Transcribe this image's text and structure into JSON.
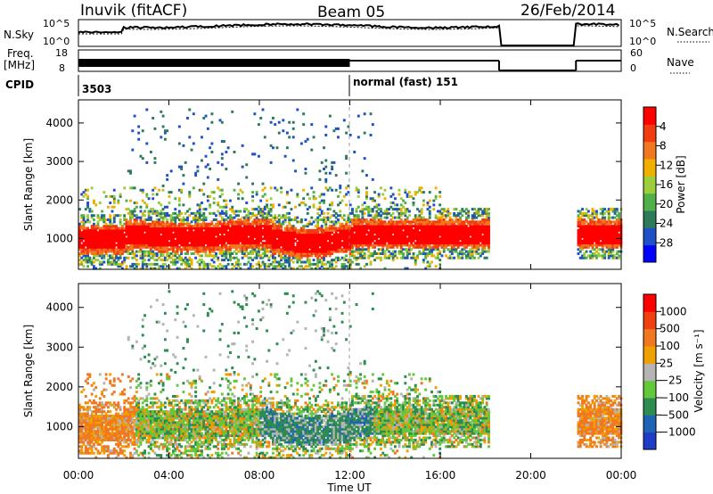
{
  "header": {
    "station": "Inuvik (fitACF)",
    "beam": "Beam 05",
    "date": "26/Feb/2014"
  },
  "summary": {
    "nsky_label": "N.Sky",
    "nsky_ticks": [
      "10^5",
      "10^0"
    ],
    "nsearch_label": "N.Search",
    "nsearch_ticks": [
      "10^5",
      "10^0"
    ],
    "freq_label": "Freq.",
    "freq_unit": "[MHz]",
    "freq_ticks": [
      "18",
      "8"
    ],
    "nave_label": "Nave",
    "nave_ticks": [
      "60",
      "0"
    ],
    "cpid_label": "CPID",
    "cpid_values": [
      {
        "text": "3503",
        "t": 0.0
      },
      {
        "text": "normal (fast) 151",
        "t": 12.0
      }
    ]
  },
  "chart_data": [
    {
      "type": "heatmap",
      "name": "power",
      "ylabel": "Slant Range [km]",
      "xlabel": "Time UT",
      "xlim": [
        0,
        24
      ],
      "ylim": [
        200,
        4600
      ],
      "y_ticks": [
        1000,
        2000,
        3000,
        4000
      ],
      "x_ticks": [
        "00:00",
        "04:00",
        "08:00",
        "12:00",
        "16:00",
        "20:00",
        "00:00"
      ],
      "colorbar": {
        "label": "Power [dB]",
        "ticks": [
          "4",
          "8",
          "12",
          "16",
          "20",
          "24",
          "28"
        ],
        "range": [
          0,
          32
        ],
        "colors": [
          "#0000ff",
          "#1e50c8",
          "#2d7a5a",
          "#52b04a",
          "#9ccd3a",
          "#f0b000",
          "#f07820",
          "#f03c10",
          "#ff0000"
        ]
      }
    },
    {
      "type": "heatmap",
      "name": "velocity",
      "ylabel": "Slant Range [km]",
      "xlabel": "Time UT",
      "xlim": [
        0,
        24
      ],
      "ylim": [
        200,
        4600
      ],
      "y_ticks": [
        1000,
        2000,
        3000,
        4000
      ],
      "x_ticks": [
        "00:00",
        "04:00",
        "08:00",
        "12:00",
        "16:00",
        "20:00",
        "00:00"
      ],
      "colorbar": {
        "label": "Velocity [m s⁻¹]",
        "ticks": [
          "1000",
          "500",
          "100",
          "25",
          "−25",
          "−100",
          "−500",
          "−1000"
        ],
        "colors": [
          "#1e3cc8",
          "#1e64b4",
          "#2d8c50",
          "#64c83c",
          "#b4b4b4",
          "#f0a000",
          "#f07820",
          "#f04010",
          "#ff0000"
        ]
      }
    }
  ],
  "footer": {
    "time_label": "Time UT"
  }
}
